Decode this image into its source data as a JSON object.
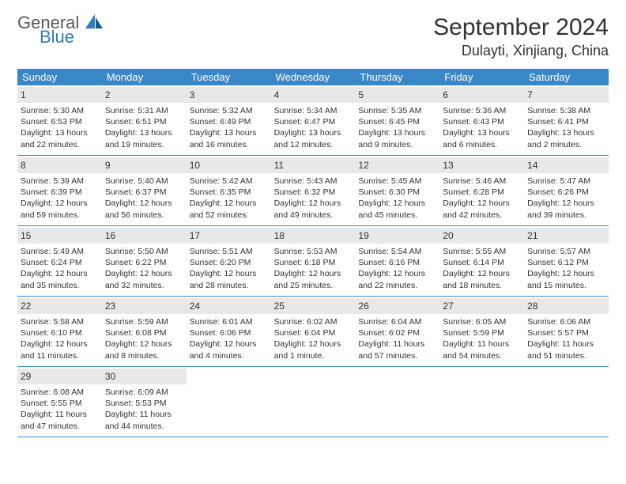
{
  "logo": {
    "general": "General",
    "blue": "Blue"
  },
  "title": "September 2024",
  "location": "Dulayti, Xinjiang, China",
  "header_bg": "#3a87c7",
  "daynum_bg": "#e8e8e8",
  "weekdays": [
    "Sunday",
    "Monday",
    "Tuesday",
    "Wednesday",
    "Thursday",
    "Friday",
    "Saturday"
  ],
  "weeks": [
    [
      {
        "n": "1",
        "sr": "5:30 AM",
        "ss": "6:53 PM",
        "dl": "13 hours and 22 minutes."
      },
      {
        "n": "2",
        "sr": "5:31 AM",
        "ss": "6:51 PM",
        "dl": "13 hours and 19 minutes."
      },
      {
        "n": "3",
        "sr": "5:32 AM",
        "ss": "6:49 PM",
        "dl": "13 hours and 16 minutes."
      },
      {
        "n": "4",
        "sr": "5:34 AM",
        "ss": "6:47 PM",
        "dl": "13 hours and 12 minutes."
      },
      {
        "n": "5",
        "sr": "5:35 AM",
        "ss": "6:45 PM",
        "dl": "13 hours and 9 minutes."
      },
      {
        "n": "6",
        "sr": "5:36 AM",
        "ss": "6:43 PM",
        "dl": "13 hours and 6 minutes."
      },
      {
        "n": "7",
        "sr": "5:38 AM",
        "ss": "6:41 PM",
        "dl": "13 hours and 2 minutes."
      }
    ],
    [
      {
        "n": "8",
        "sr": "5:39 AM",
        "ss": "6:39 PM",
        "dl": "12 hours and 59 minutes."
      },
      {
        "n": "9",
        "sr": "5:40 AM",
        "ss": "6:37 PM",
        "dl": "12 hours and 56 minutes."
      },
      {
        "n": "10",
        "sr": "5:42 AM",
        "ss": "6:35 PM",
        "dl": "12 hours and 52 minutes."
      },
      {
        "n": "11",
        "sr": "5:43 AM",
        "ss": "6:32 PM",
        "dl": "12 hours and 49 minutes."
      },
      {
        "n": "12",
        "sr": "5:45 AM",
        "ss": "6:30 PM",
        "dl": "12 hours and 45 minutes."
      },
      {
        "n": "13",
        "sr": "5:46 AM",
        "ss": "6:28 PM",
        "dl": "12 hours and 42 minutes."
      },
      {
        "n": "14",
        "sr": "5:47 AM",
        "ss": "6:26 PM",
        "dl": "12 hours and 39 minutes."
      }
    ],
    [
      {
        "n": "15",
        "sr": "5:49 AM",
        "ss": "6:24 PM",
        "dl": "12 hours and 35 minutes."
      },
      {
        "n": "16",
        "sr": "5:50 AM",
        "ss": "6:22 PM",
        "dl": "12 hours and 32 minutes."
      },
      {
        "n": "17",
        "sr": "5:51 AM",
        "ss": "6:20 PM",
        "dl": "12 hours and 28 minutes."
      },
      {
        "n": "18",
        "sr": "5:53 AM",
        "ss": "6:18 PM",
        "dl": "12 hours and 25 minutes."
      },
      {
        "n": "19",
        "sr": "5:54 AM",
        "ss": "6:16 PM",
        "dl": "12 hours and 22 minutes."
      },
      {
        "n": "20",
        "sr": "5:55 AM",
        "ss": "6:14 PM",
        "dl": "12 hours and 18 minutes."
      },
      {
        "n": "21",
        "sr": "5:57 AM",
        "ss": "6:12 PM",
        "dl": "12 hours and 15 minutes."
      }
    ],
    [
      {
        "n": "22",
        "sr": "5:58 AM",
        "ss": "6:10 PM",
        "dl": "12 hours and 11 minutes."
      },
      {
        "n": "23",
        "sr": "5:59 AM",
        "ss": "6:08 PM",
        "dl": "12 hours and 8 minutes."
      },
      {
        "n": "24",
        "sr": "6:01 AM",
        "ss": "6:06 PM",
        "dl": "12 hours and 4 minutes."
      },
      {
        "n": "25",
        "sr": "6:02 AM",
        "ss": "6:04 PM",
        "dl": "12 hours and 1 minute."
      },
      {
        "n": "26",
        "sr": "6:04 AM",
        "ss": "6:02 PM",
        "dl": "11 hours and 57 minutes."
      },
      {
        "n": "27",
        "sr": "6:05 AM",
        "ss": "5:59 PM",
        "dl": "11 hours and 54 minutes."
      },
      {
        "n": "28",
        "sr": "6:06 AM",
        "ss": "5:57 PM",
        "dl": "11 hours and 51 minutes."
      }
    ],
    [
      {
        "n": "29",
        "sr": "6:08 AM",
        "ss": "5:55 PM",
        "dl": "11 hours and 47 minutes."
      },
      {
        "n": "30",
        "sr": "6:09 AM",
        "ss": "5:53 PM",
        "dl": "11 hours and 44 minutes."
      },
      null,
      null,
      null,
      null,
      null
    ]
  ]
}
